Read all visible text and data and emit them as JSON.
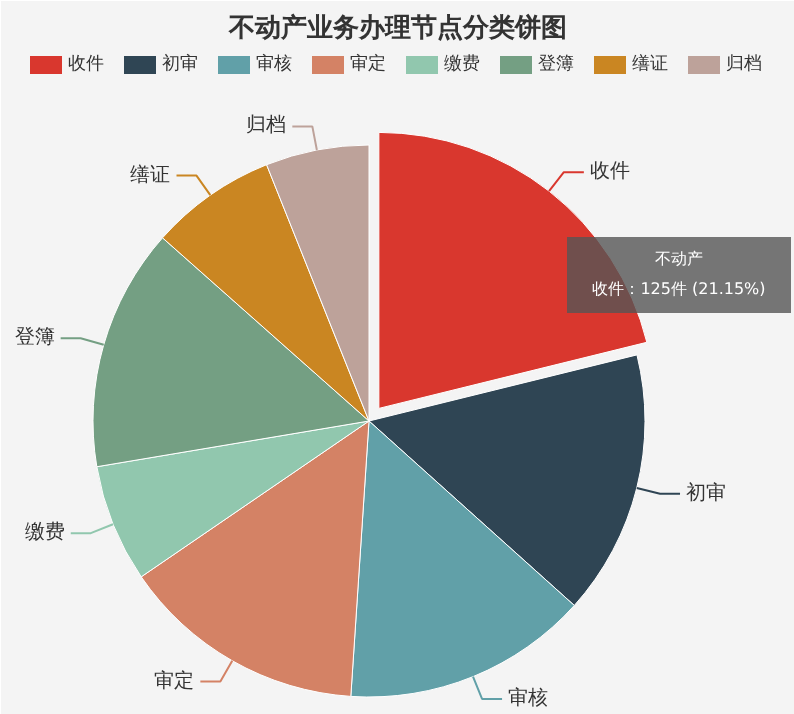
{
  "chart_data": {
    "type": "pie",
    "title": "不动产业务办理节点分类饼图",
    "categories": [
      "收件",
      "初审",
      "审核",
      "审定",
      "缴费",
      "登簿",
      "缮证",
      "归档"
    ],
    "values": [
      21.15,
      15.5,
      14.4,
      14.4,
      6.9,
      14.2,
      7.4,
      6.05
    ],
    "colors": [
      "#d9372e",
      "#2f4554",
      "#61a0a8",
      "#d48265",
      "#91c7ae",
      "#749f83",
      "#ca8622",
      "#bda29a"
    ],
    "legend": "top",
    "annotations": [
      "不动产",
      "收件：125件 (21.15%)"
    ]
  }
}
